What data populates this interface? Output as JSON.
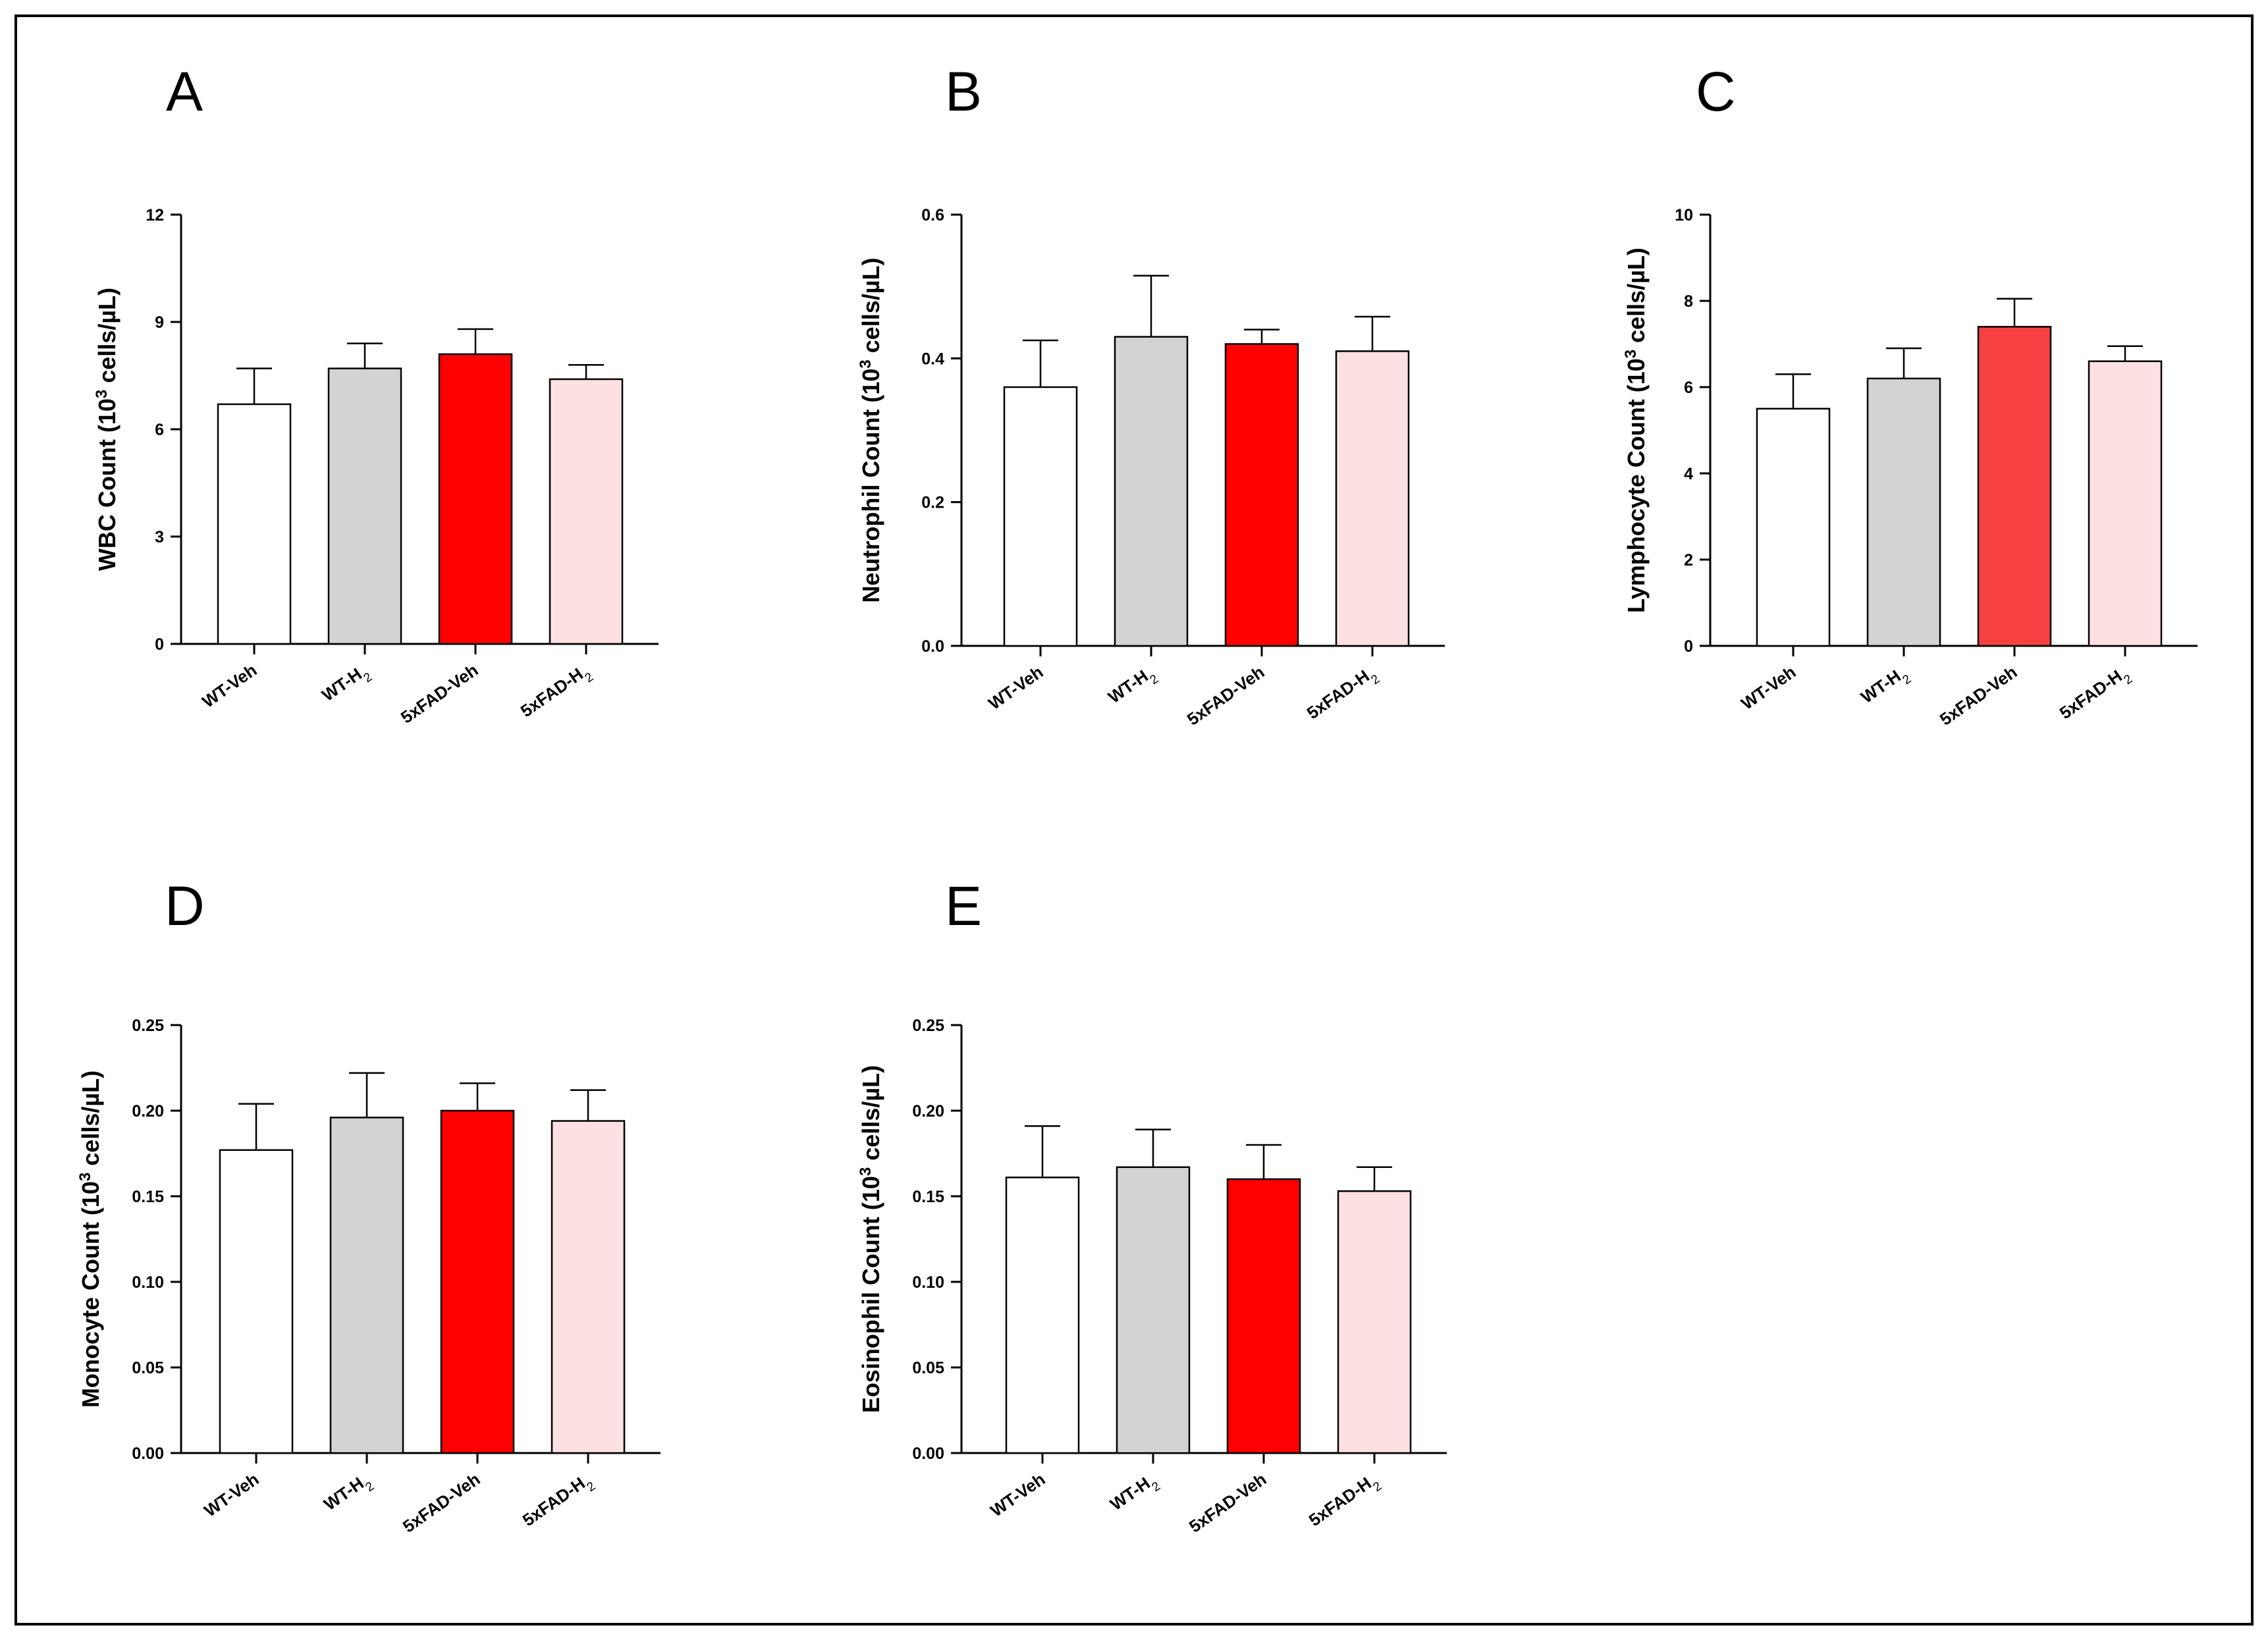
{
  "figure": {
    "panels": [
      "A",
      "B",
      "C",
      "D",
      "E"
    ]
  },
  "chart_data": [
    {
      "panel": "A",
      "type": "bar",
      "title": "",
      "ylabel": {
        "pre": "WBC Count (10",
        "sup": "3",
        "post": " cells/µL)"
      },
      "xlabel": "",
      "categories": [
        {
          "main": "WT-Veh",
          "sub": ""
        },
        {
          "main": "WT-H",
          "sub": "2"
        },
        {
          "main": "5xFAD-Veh",
          "sub": ""
        },
        {
          "main": "5xFAD-H",
          "sub": "2"
        }
      ],
      "values": [
        6.7,
        7.7,
        8.1,
        7.4
      ],
      "errors": [
        1.0,
        0.7,
        0.7,
        0.4
      ],
      "colors": [
        "#ffffff",
        "#d3d3d3",
        "#ff0000",
        "#fde0e1"
      ],
      "ylim": [
        0,
        12
      ],
      "yticks": [
        "0",
        "3",
        "6",
        "9",
        "12"
      ]
    },
    {
      "panel": "B",
      "type": "bar",
      "title": "",
      "ylabel": {
        "pre": "Neutrophil Count (10",
        "sup": "3",
        "post": " cells/µL)"
      },
      "xlabel": "",
      "categories": [
        {
          "main": "WT-Veh",
          "sub": ""
        },
        {
          "main": "WT-H",
          "sub": "2"
        },
        {
          "main": "5xFAD-Veh",
          "sub": ""
        },
        {
          "main": "5xFAD-H",
          "sub": "2"
        }
      ],
      "values": [
        0.36,
        0.43,
        0.42,
        0.41
      ],
      "errors": [
        0.065,
        0.085,
        0.02,
        0.048
      ],
      "colors": [
        "#ffffff",
        "#d3d3d3",
        "#ff0000",
        "#fde0e1"
      ],
      "ylim": [
        0,
        0.6
      ],
      "yticks": [
        "0.0",
        "0.2",
        "0.4",
        "0.6"
      ]
    },
    {
      "panel": "C",
      "type": "bar",
      "title": "",
      "ylabel": {
        "pre": "Lymphocyte Count (10",
        "sup": "3",
        "post": " cells/µL)"
      },
      "xlabel": "",
      "categories": [
        {
          "main": "WT-Veh",
          "sub": ""
        },
        {
          "main": "WT-H",
          "sub": "2"
        },
        {
          "main": "5xFAD-Veh",
          "sub": ""
        },
        {
          "main": "5xFAD-H",
          "sub": "2"
        }
      ],
      "values": [
        5.5,
        6.2,
        7.4,
        6.6
      ],
      "errors": [
        0.8,
        0.7,
        0.65,
        0.35
      ],
      "colors": [
        "#ffffff",
        "#d3d3d3",
        "#f74040",
        "#fde0e1"
      ],
      "ylim": [
        0,
        10
      ],
      "yticks": [
        "0",
        "2",
        "4",
        "6",
        "8",
        "10"
      ]
    },
    {
      "panel": "D",
      "type": "bar",
      "title": "",
      "ylabel": {
        "pre": "Monocyte Count (10",
        "sup": "3",
        "post": " cells/µL)"
      },
      "xlabel": "",
      "categories": [
        {
          "main": "WT-Veh",
          "sub": ""
        },
        {
          "main": "WT-H",
          "sub": "2"
        },
        {
          "main": "5xFAD-Veh",
          "sub": ""
        },
        {
          "main": "5xFAD-H",
          "sub": "2"
        }
      ],
      "values": [
        0.177,
        0.196,
        0.2,
        0.194
      ],
      "errors": [
        0.027,
        0.026,
        0.016,
        0.018
      ],
      "colors": [
        "#ffffff",
        "#d3d3d3",
        "#ff0000",
        "#fde0e1"
      ],
      "ylim": [
        0,
        0.25
      ],
      "yticks": [
        "0.00",
        "0.05",
        "0.10",
        "0.15",
        "0.20",
        "0.25"
      ]
    },
    {
      "panel": "E",
      "type": "bar",
      "title": "",
      "ylabel": {
        "pre": "Eosinophil Count (10",
        "sup": "3",
        "post": " cells/µL)"
      },
      "xlabel": "",
      "categories": [
        {
          "main": "WT-Veh",
          "sub": ""
        },
        {
          "main": "WT-H",
          "sub": "2"
        },
        {
          "main": "5xFAD-Veh",
          "sub": ""
        },
        {
          "main": "5xFAD-H",
          "sub": "2"
        }
      ],
      "values": [
        0.161,
        0.167,
        0.16,
        0.153
      ],
      "errors": [
        0.03,
        0.022,
        0.02,
        0.014
      ],
      "colors": [
        "#ffffff",
        "#d3d3d3",
        "#ff0000",
        "#fde0e1"
      ],
      "ylim": [
        0,
        0.25
      ],
      "yticks": [
        "0.00",
        "0.05",
        "0.10",
        "0.15",
        "0.20",
        "0.25"
      ]
    }
  ]
}
